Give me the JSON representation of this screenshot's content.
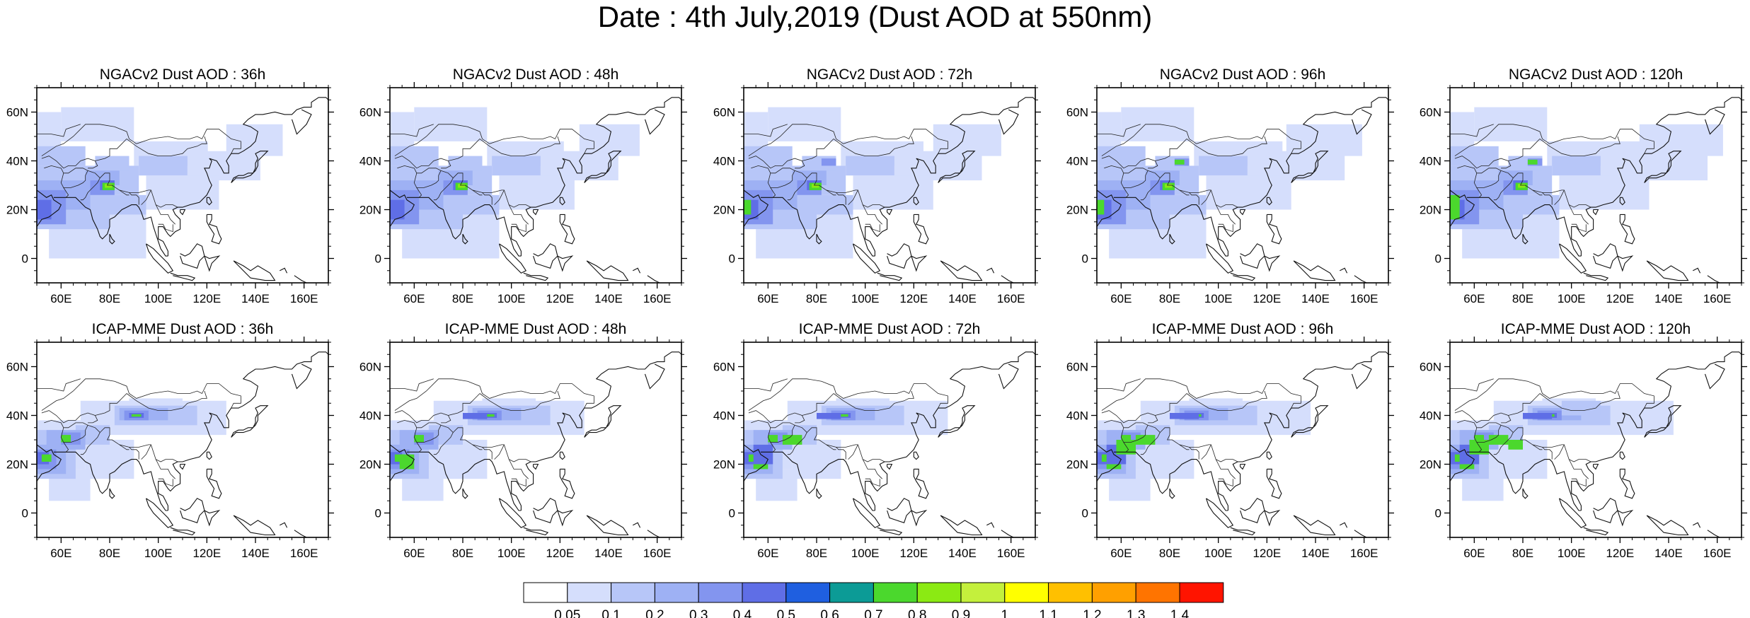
{
  "figure": {
    "title": "Date : 4th July,2019 (Dust AOD at 550nm)"
  },
  "axes": {
    "lon_range": [
      50,
      170
    ],
    "lat_range": [
      -10,
      70
    ],
    "x_ticks": [
      "60E",
      "80E",
      "100E",
      "120E",
      "140E",
      "160E"
    ],
    "x_tick_values": [
      60,
      80,
      100,
      120,
      140,
      160
    ],
    "y_ticks": [
      "0",
      "20N",
      "40N",
      "60N"
    ],
    "y_tick_values": [
      0,
      20,
      40,
      60
    ]
  },
  "panels": [
    {
      "title": "NGACv2 Dust AOD : 36h",
      "model": "NGACv2",
      "lead_hours": 36,
      "row": 0,
      "col": 0
    },
    {
      "title": "NGACv2 Dust AOD : 48h",
      "model": "NGACv2",
      "lead_hours": 48,
      "row": 0,
      "col": 1
    },
    {
      "title": "NGACv2 Dust AOD : 72h",
      "model": "NGACv2",
      "lead_hours": 72,
      "row": 0,
      "col": 2
    },
    {
      "title": "NGACv2 Dust AOD : 96h",
      "model": "NGACv2",
      "lead_hours": 96,
      "row": 0,
      "col": 3
    },
    {
      "title": "NGACv2 Dust AOD : 120h",
      "model": "NGACv2",
      "lead_hours": 120,
      "row": 0,
      "col": 4
    },
    {
      "title": "ICAP-MME Dust AOD : 36h",
      "model": "ICAP-MME",
      "lead_hours": 36,
      "row": 1,
      "col": 0
    },
    {
      "title": "ICAP-MME Dust AOD : 48h",
      "model": "ICAP-MME",
      "lead_hours": 48,
      "row": 1,
      "col": 1
    },
    {
      "title": "ICAP-MME Dust AOD : 72h",
      "model": "ICAP-MME",
      "lead_hours": 72,
      "row": 1,
      "col": 2
    },
    {
      "title": "ICAP-MME Dust AOD : 96h",
      "model": "ICAP-MME",
      "lead_hours": 96,
      "row": 1,
      "col": 3
    },
    {
      "title": "ICAP-MME Dust AOD : 120h",
      "model": "ICAP-MME",
      "lead_hours": 120,
      "row": 1,
      "col": 4
    }
  ],
  "colorbar": {
    "labels": [
      "0.05",
      "0.1",
      "0.2",
      "0.3",
      "0.4",
      "0.5",
      "0.6",
      "0.7",
      "0.8",
      "0.9",
      "1",
      "1.1",
      "1.2",
      "1.3",
      "1.4"
    ],
    "colors": [
      "#ffffff",
      "#d5defc",
      "#b7c6f8",
      "#9eb1f4",
      "#8395ef",
      "#5f6ee6",
      "#1f5fe0",
      "#0c9b96",
      "#4bd82d",
      "#8bea13",
      "#c4f03c",
      "#ffff00",
      "#ffc000",
      "#ffa000",
      "#ff7400",
      "#ff1400"
    ]
  }
}
